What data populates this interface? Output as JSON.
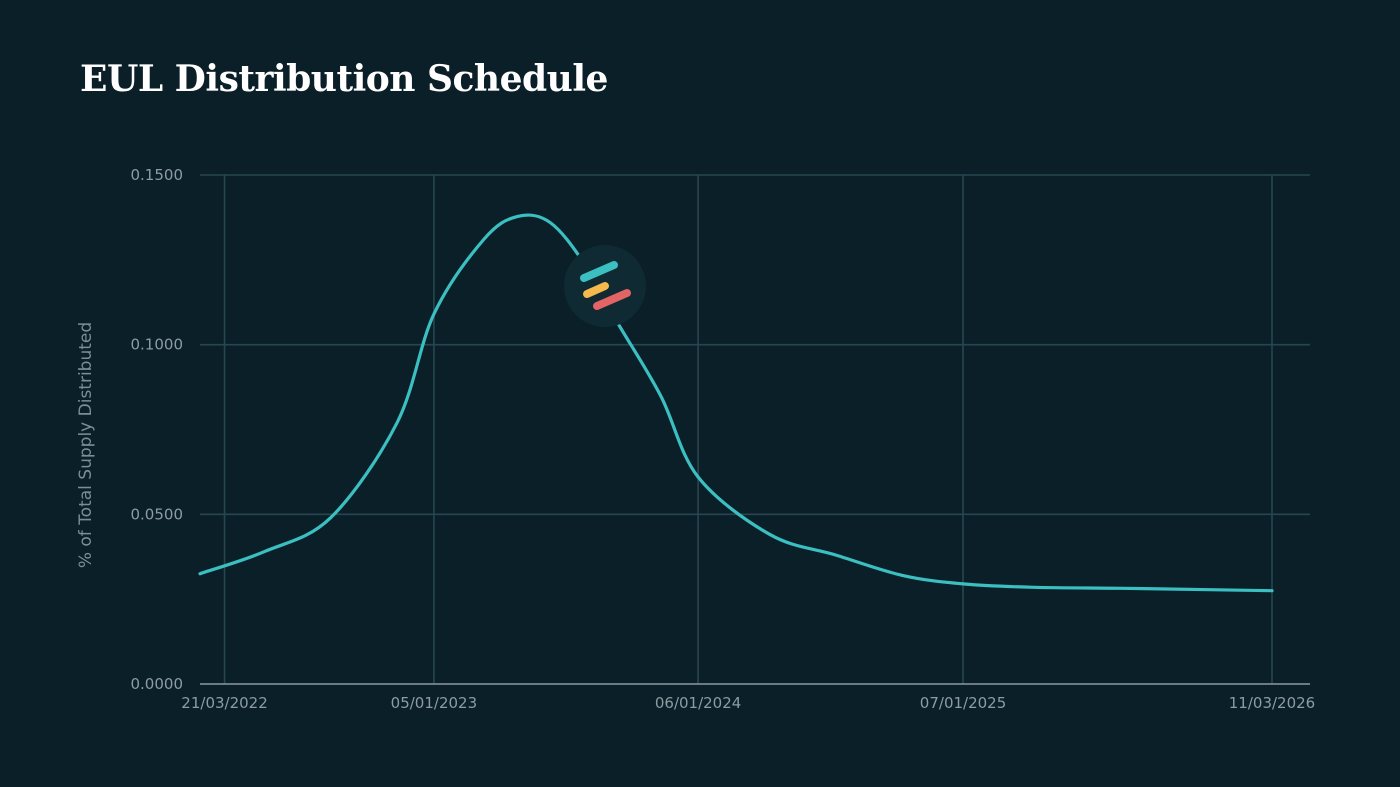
{
  "chart_data": {
    "type": "line",
    "title": "EUL Distribution Schedule",
    "xlabel": "",
    "ylabel": "% of Total Supply Distributed",
    "x_ticks": [
      "21/03/2022",
      "05/01/2023",
      "06/01/2024",
      "07/01/2025",
      "11/03/2026"
    ],
    "y_ticks": [
      "0.0000",
      "0.0500",
      "0.1000",
      "0.1500"
    ],
    "xlim": [
      "2022-02-15",
      "2026-03-11"
    ],
    "ylim": [
      0,
      0.15
    ],
    "grid": true,
    "legend": "none",
    "series": [
      {
        "color": "#3bbfc0",
        "x": [
          "2022-02-15",
          "2022-05-15",
          "2022-08-15",
          "2022-11-15",
          "2023-01-05",
          "2023-03-15",
          "2023-05-01",
          "2023-06-15",
          "2023-08-01",
          "2023-09-15",
          "2023-11-15",
          "2024-01-06",
          "2024-04-15",
          "2024-07-15",
          "2024-10-15",
          "2025-01-07",
          "2025-04-15",
          "2025-08-15",
          "2025-12-15",
          "2026-03-11"
        ],
        "values": [
          0.0325,
          0.039,
          0.049,
          0.077,
          0.109,
          0.131,
          0.1378,
          0.136,
          0.124,
          0.107,
          0.085,
          0.061,
          0.044,
          0.038,
          0.032,
          0.0295,
          0.0285,
          0.0282,
          0.0278,
          0.0275
        ]
      }
    ]
  },
  "logo": {
    "name": "euler-logo-icon"
  }
}
